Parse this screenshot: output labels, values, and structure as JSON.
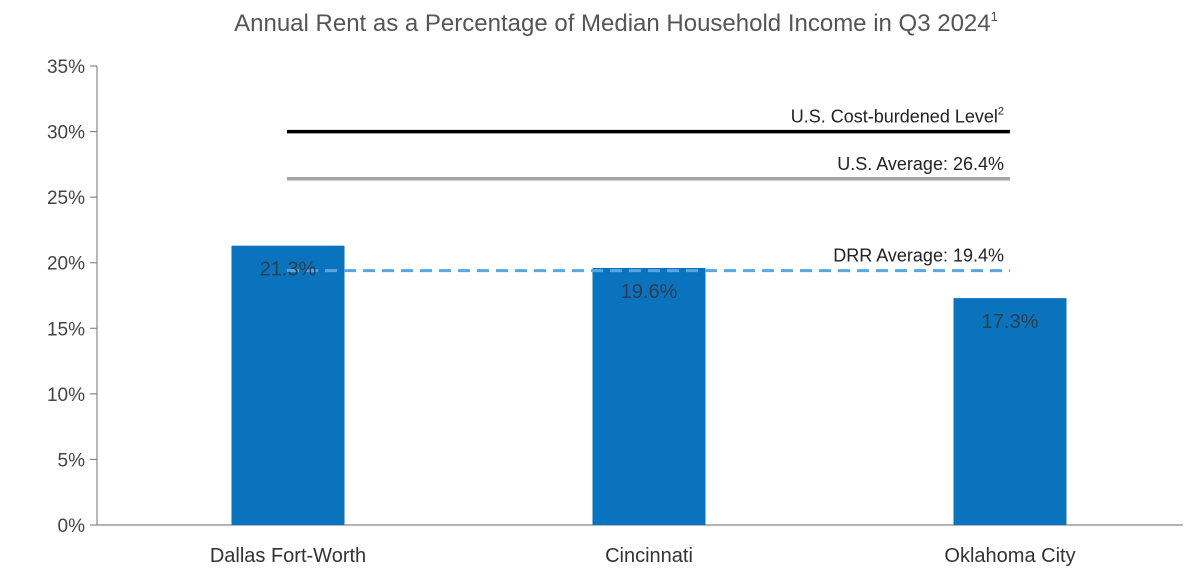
{
  "chart_data": {
    "type": "bar",
    "title": "Annual Rent as a Percentage of Median Household Income in Q3 2024",
    "title_superscript": "1",
    "xlabel": "",
    "ylabel": "",
    "categories": [
      "Dallas Fort-Worth",
      "Cincinnati",
      "Oklahoma City"
    ],
    "values": [
      21.3,
      19.6,
      17.3
    ],
    "value_labels": [
      "21.3%",
      "19.6%",
      "17.3%"
    ],
    "ylim": [
      0,
      35
    ],
    "yticks": [
      0,
      5,
      10,
      15,
      20,
      25,
      30,
      35
    ],
    "ytick_labels": [
      "0%",
      "5%",
      "10%",
      "15%",
      "20%",
      "25%",
      "30%",
      "35%"
    ],
    "bar_color": "#0a73bd",
    "grid": false,
    "reference_lines": [
      {
        "label": "U.S. Cost-burdened Level",
        "superscript": "2",
        "value": 30,
        "color": "#000000",
        "style": "solid"
      },
      {
        "label": "U.S. Average: 26.4%",
        "superscript": "",
        "value": 26.4,
        "color": "#a6a6a6",
        "style": "solid"
      },
      {
        "label": "DRR Average: 19.4%",
        "superscript": "",
        "value": 19.4,
        "color": "#5aa7e0",
        "style": "dashed"
      }
    ]
  }
}
